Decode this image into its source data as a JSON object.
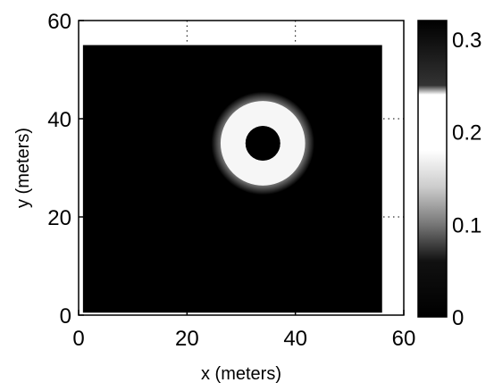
{
  "chart_data": {
    "type": "heatmap",
    "title": "",
    "xlabel": "x (meters)",
    "ylabel": "y (meters)",
    "xlim": [
      0,
      60
    ],
    "ylim": [
      0,
      60
    ],
    "xticks": [
      "0",
      "20",
      "40",
      "60"
    ],
    "yticks": [
      "0",
      "20",
      "40",
      "60"
    ],
    "grid": "dotted",
    "field_extent": {
      "x": [
        0.8,
        56
      ],
      "y": [
        0.5,
        55
      ]
    },
    "features": [
      {
        "shape": "ring",
        "center": [
          34,
          35
        ],
        "inner_radius": 3.2,
        "outer_radius": 7.8,
        "value": 0.22
      },
      {
        "shape": "disk",
        "center": [
          34,
          35
        ],
        "radius": 3.2,
        "value": 0.3
      }
    ],
    "background_value": 0,
    "colorbar": {
      "range": [
        0,
        0.32
      ],
      "ticks": [
        "0",
        "0.1",
        "0.2",
        "0.3"
      ],
      "tick_values": [
        0,
        0.1,
        0.2,
        0.3
      ],
      "colormap": [
        {
          "value": 0.0,
          "color": "#000000"
        },
        {
          "value": 0.06,
          "color": "#111111"
        },
        {
          "value": 0.1,
          "color": "#777777"
        },
        {
          "value": 0.14,
          "color": "#cccccc"
        },
        {
          "value": 0.18,
          "color": "#ffffff"
        },
        {
          "value": 0.24,
          "color": "#ffffff"
        },
        {
          "value": 0.25,
          "color": "#333333"
        },
        {
          "value": 0.32,
          "color": "#000000"
        }
      ]
    }
  }
}
